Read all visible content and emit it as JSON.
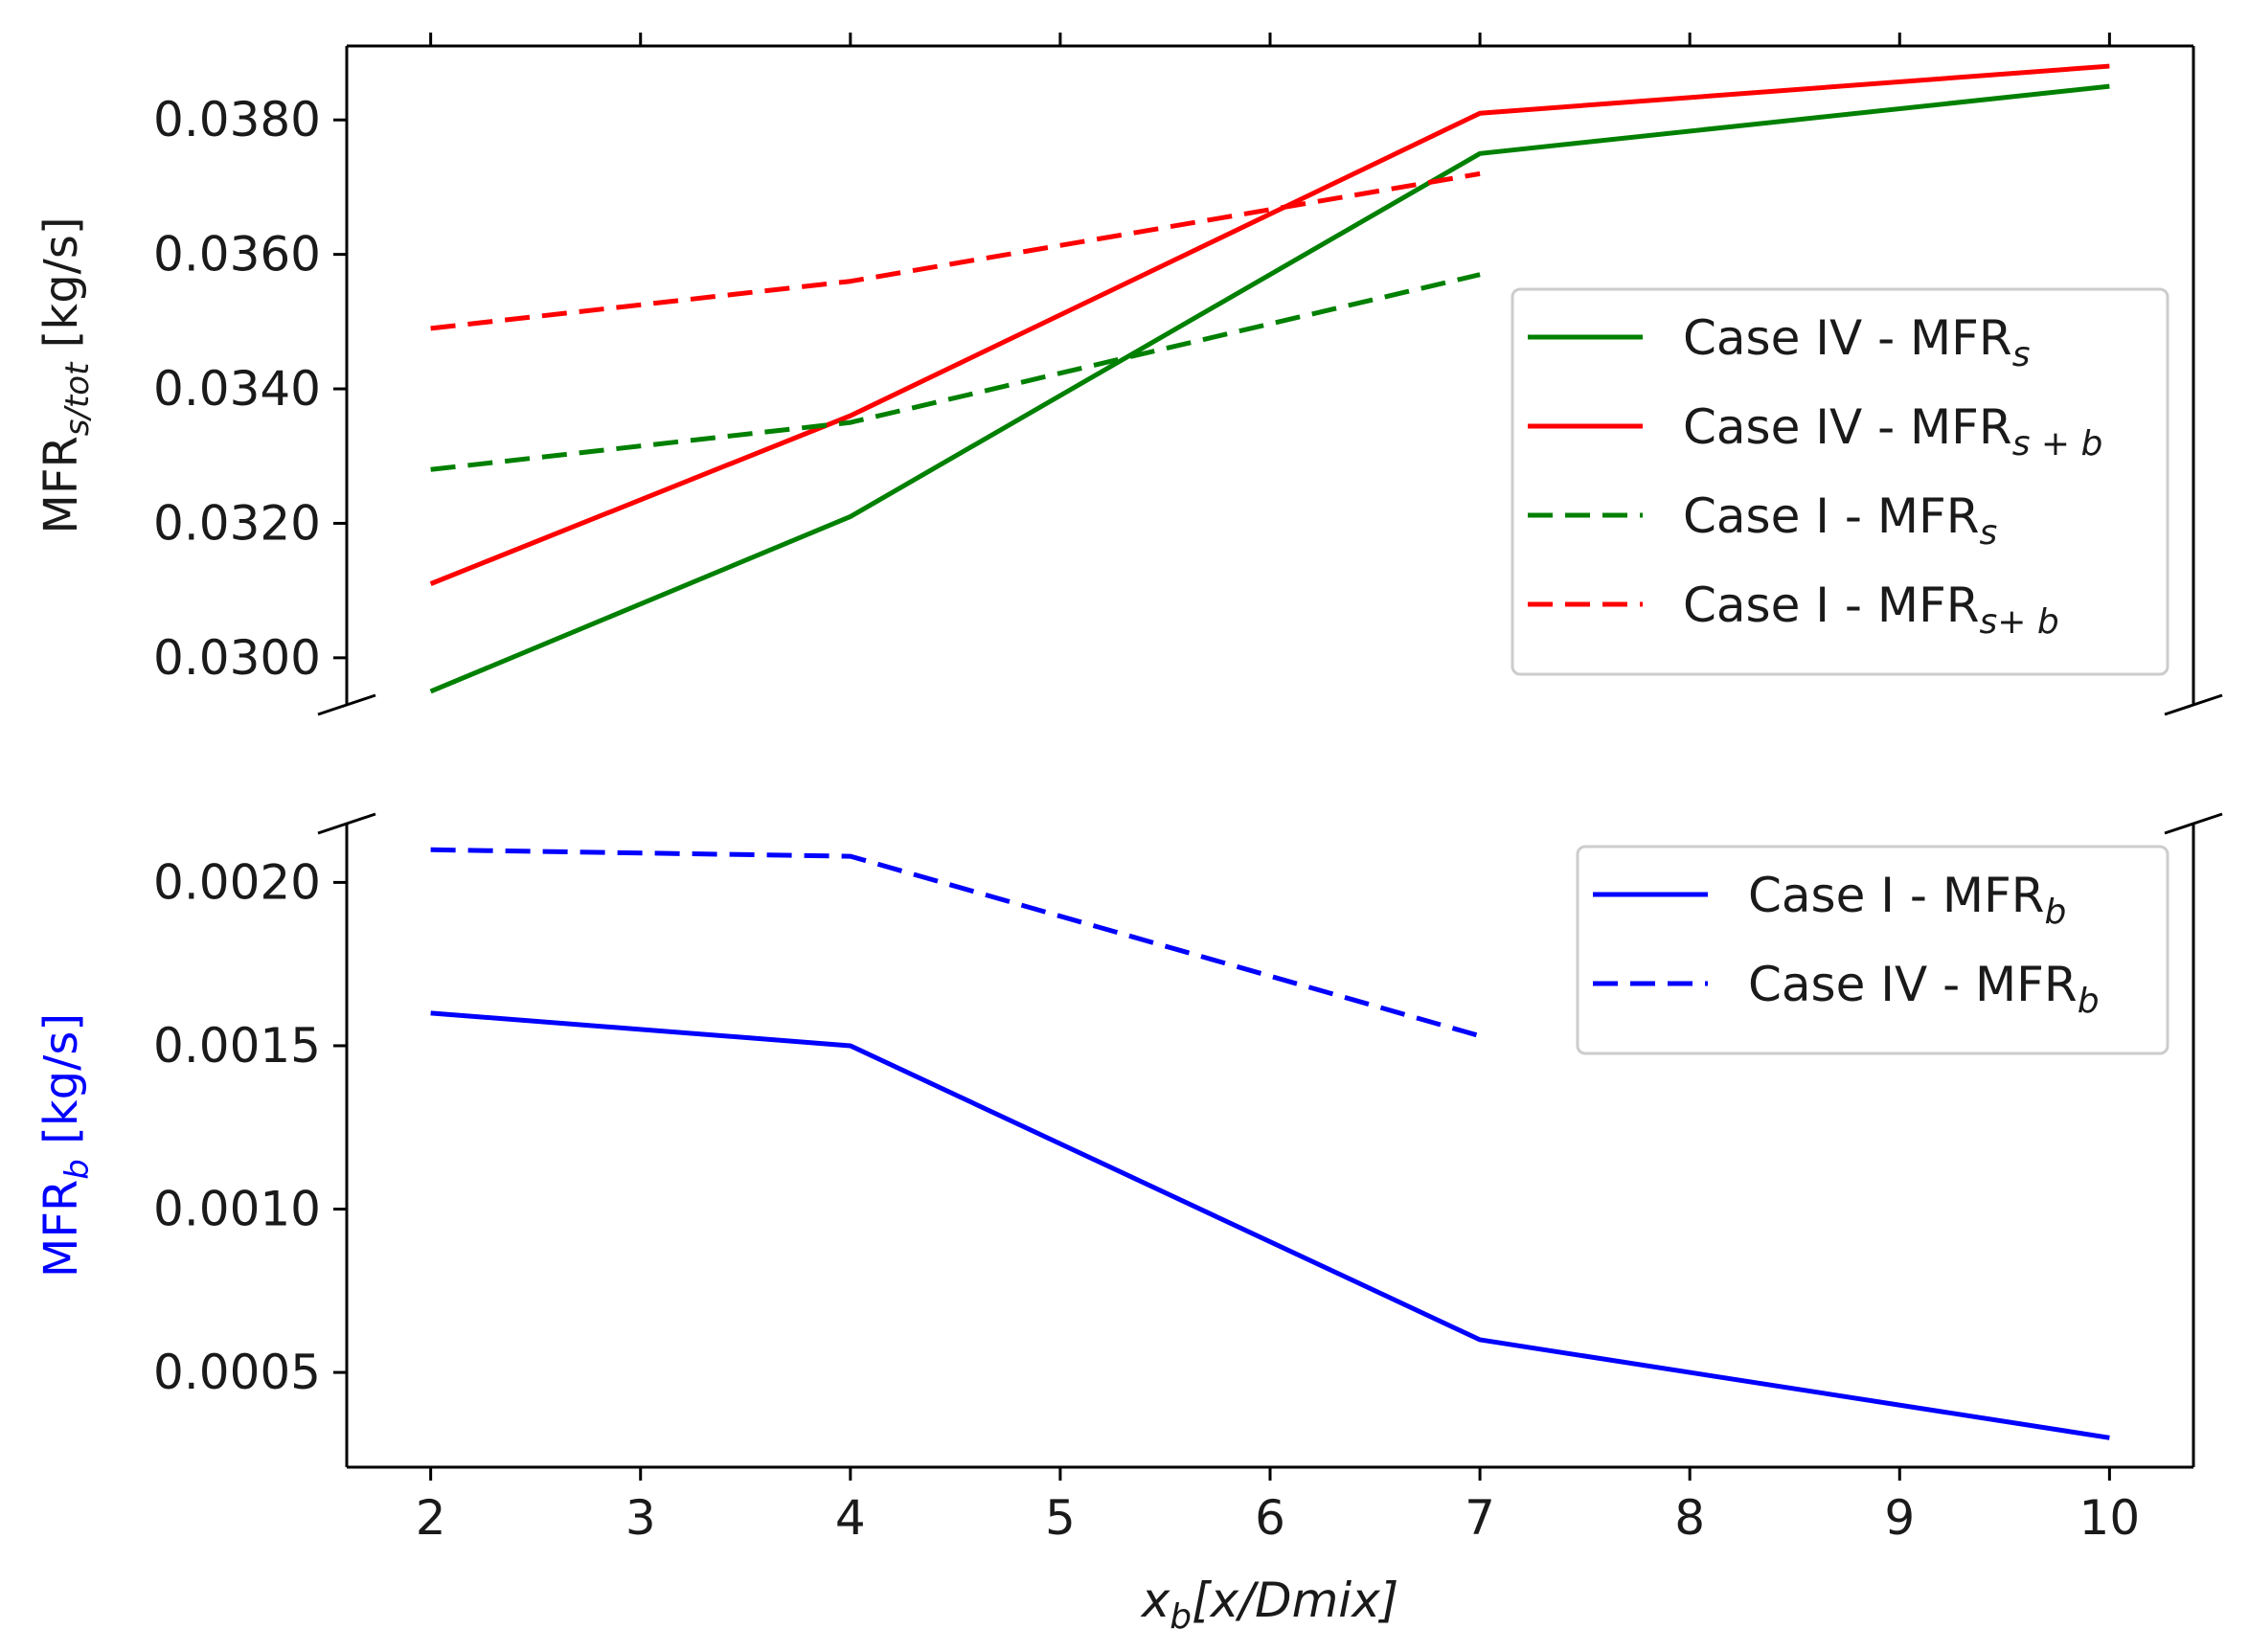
{
  "chart_data": [
    {
      "type": "line",
      "panel": "top",
      "ylabel": {
        "main": "MFR",
        "sub": "s/tot",
        "unit": " [kg/s]"
      },
      "ylim": [
        0.0293,
        0.0391
      ],
      "xlim": [
        1.6,
        10.4
      ],
      "y_ticks": [
        0.03,
        0.032,
        0.034,
        0.036,
        0.038
      ],
      "y_tick_labels": [
        "0.0300",
        "0.0320",
        "0.0340",
        "0.0360",
        "0.0380"
      ],
      "series": [
        {
          "name": "Case IV - MFR",
          "sub": "s",
          "color": "#008000",
          "dash": "solid",
          "x": [
            2,
            4,
            7,
            10
          ],
          "values": [
            0.0295,
            0.0321,
            0.0375,
            0.0385
          ]
        },
        {
          "name": "Case IV - MFR",
          "sub": "s + b",
          "color": "#ff0000",
          "dash": "solid",
          "x": [
            2,
            4,
            7,
            10
          ],
          "values": [
            0.0311,
            0.0336,
            0.0381,
            0.0388
          ]
        },
        {
          "name": "Case I - MFR",
          "sub": "s",
          "color": "#008000",
          "dash": "dashed",
          "x": [
            2,
            4,
            7
          ],
          "values": [
            0.0328,
            0.0335,
            0.0357
          ]
        },
        {
          "name": "Case I - MFR",
          "sub": "s+ b",
          "color": "#ff0000",
          "dash": "dashed",
          "x": [
            2,
            4,
            7
          ],
          "values": [
            0.0349,
            0.0356,
            0.0372
          ]
        }
      ],
      "legend": "center-right"
    },
    {
      "type": "line",
      "panel": "bottom",
      "ylabel": {
        "main": "MFR",
        "sub": "b",
        "unit": " [kg/s]",
        "color": "#0000ff"
      },
      "ylim": [
        0.00021,
        0.00218
      ],
      "xlim": [
        1.6,
        10.4
      ],
      "y_ticks": [
        0.0005,
        0.001,
        0.0015,
        0.002
      ],
      "y_tick_labels": [
        "0.0005",
        "0.0010",
        "0.0015",
        "0.0020"
      ],
      "series": [
        {
          "name": "Case I - MFR",
          "sub": "b",
          "color": "#0000ff",
          "dash": "solid",
          "x": [
            2,
            4,
            7,
            10
          ],
          "values": [
            0.0016,
            0.0015,
            0.0006,
            0.0003
          ]
        },
        {
          "name": "Case IV - MFR",
          "sub": "b",
          "color": "#0000ff",
          "dash": "dashed",
          "x": [
            2,
            4,
            7
          ],
          "values": [
            0.0021,
            0.00208,
            0.00153
          ]
        }
      ],
      "legend": "top-right"
    }
  ],
  "x_axis": {
    "ticks": [
      2,
      3,
      4,
      5,
      6,
      7,
      8,
      9,
      10
    ],
    "tick_labels": [
      "2",
      "3",
      "4",
      "5",
      "6",
      "7",
      "8",
      "9",
      "10"
    ],
    "xlabel": {
      "main": "x",
      "sub": "b",
      "rest": "[x/Dmix]"
    }
  }
}
